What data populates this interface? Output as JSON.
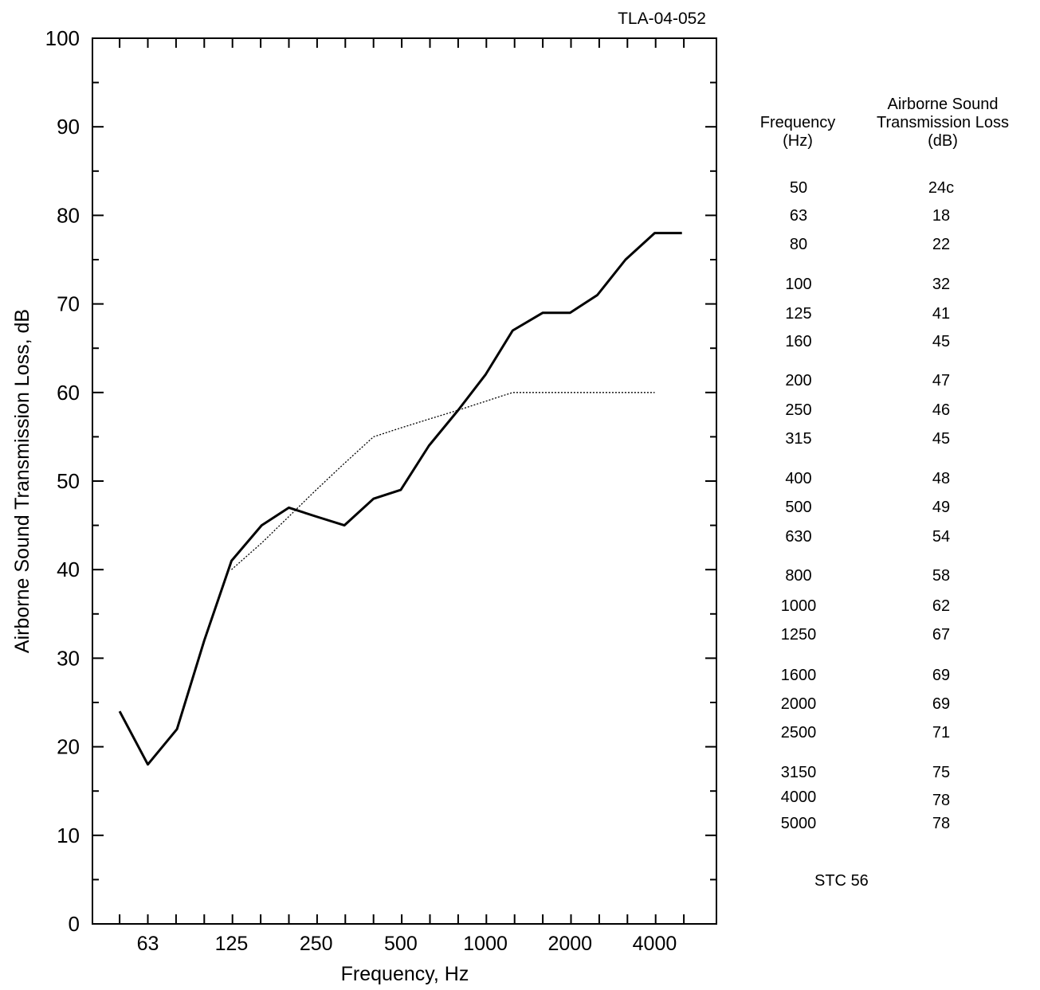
{
  "report_id": "TLA-04-052",
  "chart_data": {
    "type": "line",
    "xlabel": "Frequency, Hz",
    "ylabel": "Airborne Sound Transmission Loss, dB",
    "x_scale": "log (1/3-octave bands)",
    "x_tick_labels": [
      "63",
      "125",
      "250",
      "500",
      "1000",
      "2000",
      "4000"
    ],
    "ylim": [
      0,
      100
    ],
    "y_ticks": [
      0,
      10,
      20,
      30,
      40,
      50,
      60,
      70,
      80,
      90,
      100
    ],
    "series": [
      {
        "style": "solid",
        "color": "#000000",
        "x": [
          50,
          63,
          80,
          100,
          125,
          160,
          200,
          250,
          315,
          400,
          500,
          630,
          800,
          1000,
          1250,
          1600,
          2000,
          2500,
          3150,
          4000,
          5000
        ],
        "values": [
          24,
          18,
          22,
          32,
          41,
          45,
          47,
          46,
          45,
          48,
          49,
          54,
          58,
          62,
          67,
          69,
          69,
          71,
          75,
          78,
          78
        ]
      },
      {
        "style": "dotted",
        "color": "#000000",
        "x": [
          125,
          160,
          200,
          250,
          315,
          400,
          500,
          630,
          800,
          1000,
          1250,
          1600,
          2000,
          2500,
          3150,
          4000
        ],
        "values": [
          40,
          43,
          46,
          49,
          52,
          55,
          56,
          57,
          58,
          59,
          60,
          60,
          60,
          60,
          60,
          60
        ]
      }
    ],
    "grid": false
  },
  "table": {
    "col1_header": [
      "Frequency",
      "(Hz)"
    ],
    "col2_header": [
      "Airborne Sound",
      "Transmission Loss",
      "(dB)"
    ],
    "rows": [
      {
        "freq": "50",
        "tl": "24c"
      },
      {
        "freq": "63",
        "tl": "18"
      },
      {
        "freq": "80",
        "tl": "22"
      },
      {
        "freq": "100",
        "tl": "32"
      },
      {
        "freq": "125",
        "tl": "41"
      },
      {
        "freq": "160",
        "tl": "45"
      },
      {
        "freq": "200",
        "tl": "47"
      },
      {
        "freq": "250",
        "tl": "46"
      },
      {
        "freq": "315",
        "tl": "45"
      },
      {
        "freq": "400",
        "tl": "48"
      },
      {
        "freq": "500",
        "tl": "49"
      },
      {
        "freq": "630",
        "tl": "54"
      },
      {
        "freq": "800",
        "tl": "58"
      },
      {
        "freq": "1000",
        "tl": "62"
      },
      {
        "freq": "1250",
        "tl": "67"
      },
      {
        "freq": "1600",
        "tl": "69"
      },
      {
        "freq": "2000",
        "tl": "69"
      },
      {
        "freq": "2500",
        "tl": "71"
      },
      {
        "freq": "3150",
        "tl": "75"
      },
      {
        "freq": "4000",
        "tl": "78"
      },
      {
        "freq": "5000",
        "tl": "78"
      }
    ]
  },
  "stc": {
    "label": "STC",
    "value": "56"
  }
}
